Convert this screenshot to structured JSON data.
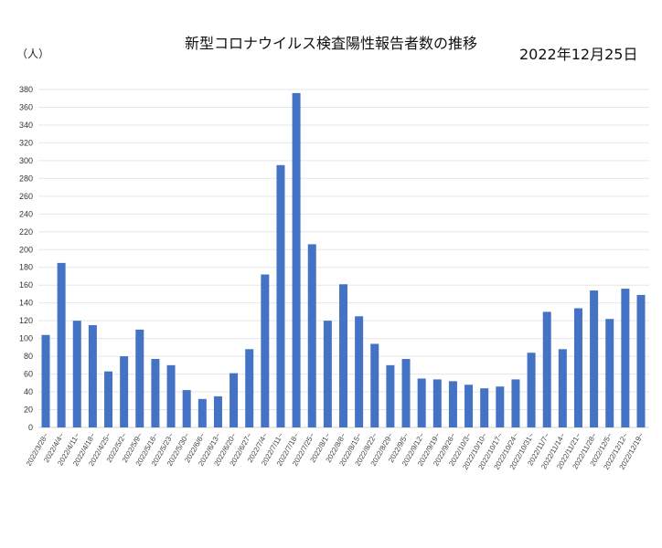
{
  "chart_data": {
    "type": "bar",
    "title": "新型コロナウイルス検査陽性報告者数の推移",
    "date": "2022年12月25日",
    "ylabel": "（人）",
    "xlabel": "",
    "ylim": [
      0,
      380
    ],
    "ytick_step": 20,
    "grid": true,
    "bar_color": "#4472C4",
    "categories": [
      "2022/3/28~",
      "2022/4/4~",
      "2022/4/11~",
      "2022/4/18~",
      "2022/4/25~",
      "2022/5/2~",
      "2022/5/9~",
      "2022/5/16~",
      "2022/5/23~",
      "2022/5/30~",
      "2022/6/6~",
      "2022/6/13~",
      "2022/6/20~",
      "2022/6/27~",
      "2022/7/4~",
      "2022/7/11~",
      "2022/7/18~",
      "2022/7/25~",
      "2022/8/1~",
      "2022/8/8~",
      "2022/8/15~",
      "2022/8/22~",
      "2022/8/29~",
      "2022/9/5~",
      "2022/9/12~",
      "2022/9/19~",
      "2022/9/26~",
      "2022/10/3~",
      "2022/10/10~",
      "2022/10/17~",
      "2022/10/24~",
      "2022/10/31~",
      "2022/11/7~",
      "2022/11/14~",
      "2022/11/21~",
      "2022/11/28~",
      "2022/12/5~",
      "2022/12/12~",
      "2022/12/19~"
    ],
    "values": [
      104,
      185,
      120,
      115,
      63,
      80,
      110,
      77,
      70,
      42,
      32,
      35,
      61,
      88,
      172,
      295,
      376,
      206,
      120,
      161,
      125,
      94,
      70,
      77,
      55,
      54,
      52,
      48,
      44,
      46,
      54,
      84,
      130,
      88,
      134,
      154,
      122,
      156,
      149
    ]
  }
}
